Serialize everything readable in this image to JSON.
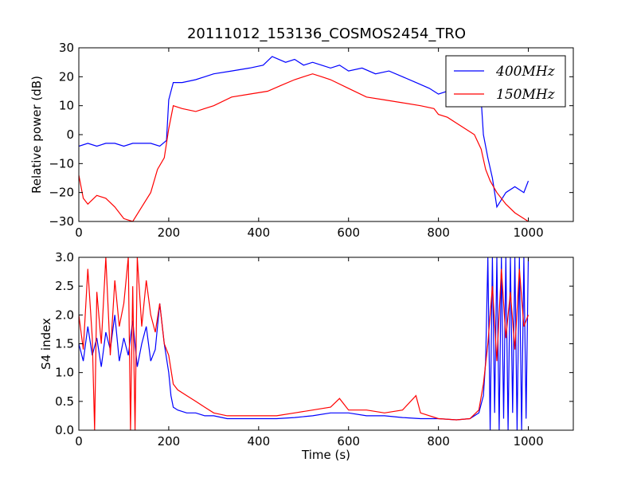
{
  "title": "20111012_153136_COSMOS2454_TRO",
  "colors": {
    "series_400": "#0000ff",
    "series_150": "#ff0000"
  },
  "chart_data": [
    {
      "type": "line",
      "xlabel": "",
      "ylabel": "Relative power (dB)",
      "xlim": [
        0,
        1100
      ],
      "ylim": [
        -30,
        30
      ],
      "xticks": [
        0,
        200,
        400,
        600,
        800,
        1000
      ],
      "yticks": [
        -30,
        -20,
        -10,
        0,
        10,
        20,
        30
      ],
      "legend": {
        "placement": "top-right",
        "entries": [
          "400MHz",
          "150MHz"
        ]
      },
      "series": [
        {
          "name": "400MHz",
          "color": "#0000ff",
          "x": [
            0,
            20,
            40,
            60,
            80,
            100,
            120,
            140,
            160,
            180,
            195,
            200,
            210,
            230,
            260,
            300,
            340,
            380,
            410,
            430,
            460,
            480,
            500,
            520,
            540,
            560,
            580,
            600,
            630,
            660,
            690,
            720,
            750,
            780,
            800,
            820,
            840,
            860,
            880,
            895,
            900,
            910,
            920,
            930,
            950,
            970,
            990,
            1000
          ],
          "y": [
            -4,
            -3,
            -4,
            -3,
            -3,
            -4,
            -3,
            -3,
            -3,
            -4,
            -2,
            12,
            18,
            18,
            19,
            21,
            22,
            23,
            24,
            27,
            25,
            26,
            24,
            25,
            24,
            23,
            24,
            22,
            23,
            21,
            22,
            20,
            18,
            16,
            14,
            15,
            18,
            19,
            18,
            12,
            0,
            -8,
            -15,
            -25,
            -20,
            -18,
            -20,
            -16
          ]
        },
        {
          "name": "150MHz",
          "color": "#ff0000",
          "x": [
            0,
            10,
            20,
            40,
            60,
            80,
            100,
            120,
            140,
            160,
            175,
            190,
            200,
            210,
            230,
            260,
            300,
            340,
            380,
            420,
            450,
            480,
            500,
            520,
            540,
            560,
            600,
            640,
            680,
            720,
            760,
            790,
            800,
            820,
            840,
            860,
            880,
            895,
            905,
            915,
            930,
            950,
            970,
            990,
            1000
          ],
          "y": [
            -14,
            -22,
            -24,
            -21,
            -22,
            -25,
            -29,
            -30,
            -25,
            -20,
            -12,
            -8,
            2,
            10,
            9,
            8,
            10,
            13,
            14,
            15,
            17,
            19,
            20,
            21,
            20,
            19,
            16,
            13,
            12,
            11,
            10,
            9,
            7,
            6,
            4,
            2,
            0,
            -5,
            -12,
            -16,
            -20,
            -24,
            -27,
            -29,
            -30
          ]
        }
      ]
    },
    {
      "type": "line",
      "xlabel": "Time (s)",
      "ylabel": "S4 index",
      "xlim": [
        0,
        1100
      ],
      "ylim": [
        0,
        3
      ],
      "xticks": [
        0,
        200,
        400,
        600,
        800,
        1000
      ],
      "yticks": [
        0.0,
        0.5,
        1.0,
        1.5,
        2.0,
        2.5,
        3.0
      ],
      "series": [
        {
          "name": "400MHz",
          "color": "#0000ff",
          "x": [
            0,
            10,
            20,
            30,
            40,
            50,
            60,
            70,
            80,
            90,
            100,
            110,
            120,
            130,
            140,
            150,
            160,
            170,
            180,
            190,
            200,
            205,
            210,
            220,
            240,
            260,
            280,
            300,
            330,
            360,
            400,
            440,
            480,
            520,
            560,
            600,
            640,
            680,
            720,
            760,
            800,
            840,
            870,
            890,
            900,
            905,
            910,
            915,
            920,
            925,
            930,
            935,
            940,
            945,
            950,
            955,
            960,
            965,
            970,
            975,
            980,
            985,
            990,
            995,
            1000
          ],
          "y": [
            1.5,
            1.2,
            1.8,
            1.3,
            1.6,
            1.1,
            1.7,
            1.4,
            2.0,
            1.2,
            1.6,
            1.3,
            1.9,
            1.1,
            1.5,
            1.8,
            1.2,
            1.4,
            2.2,
            1.5,
            1.0,
            0.6,
            0.4,
            0.35,
            0.3,
            0.3,
            0.25,
            0.25,
            0.2,
            0.2,
            0.2,
            0.2,
            0.22,
            0.25,
            0.3,
            0.3,
            0.25,
            0.25,
            0.22,
            0.2,
            0.2,
            0.18,
            0.2,
            0.3,
            0.6,
            1.2,
            3.0,
            0.0,
            3.0,
            0.3,
            3.0,
            0.0,
            3.0,
            0.2,
            3.0,
            0.0,
            3.0,
            0.3,
            3.0,
            0.0,
            3.0,
            0.0,
            3.0,
            0.2,
            3.0
          ]
        },
        {
          "name": "150MHz",
          "color": "#ff0000",
          "x": [
            0,
            10,
            20,
            30,
            35,
            40,
            50,
            60,
            70,
            80,
            90,
            100,
            110,
            115,
            120,
            125,
            130,
            140,
            150,
            160,
            170,
            180,
            190,
            200,
            210,
            220,
            240,
            260,
            280,
            300,
            330,
            360,
            400,
            440,
            480,
            520,
            560,
            580,
            600,
            640,
            680,
            720,
            750,
            760,
            800,
            840,
            870,
            890,
            900,
            910,
            920,
            930,
            940,
            950,
            960,
            970,
            980,
            990,
            1000
          ],
          "y": [
            2.0,
            1.4,
            2.8,
            1.6,
            0.0,
            2.4,
            1.5,
            3.0,
            1.3,
            2.6,
            1.8,
            2.2,
            3.0,
            0.0,
            2.5,
            0.0,
            3.0,
            1.8,
            2.6,
            2.0,
            1.7,
            2.2,
            1.5,
            1.3,
            0.8,
            0.7,
            0.6,
            0.5,
            0.4,
            0.3,
            0.25,
            0.25,
            0.25,
            0.25,
            0.3,
            0.35,
            0.4,
            0.55,
            0.35,
            0.35,
            0.3,
            0.35,
            0.6,
            0.3,
            0.2,
            0.18,
            0.2,
            0.35,
            0.8,
            1.5,
            2.5,
            1.2,
            2.8,
            1.6,
            2.4,
            1.4,
            2.8,
            1.8,
            2.0
          ]
        }
      ]
    }
  ]
}
